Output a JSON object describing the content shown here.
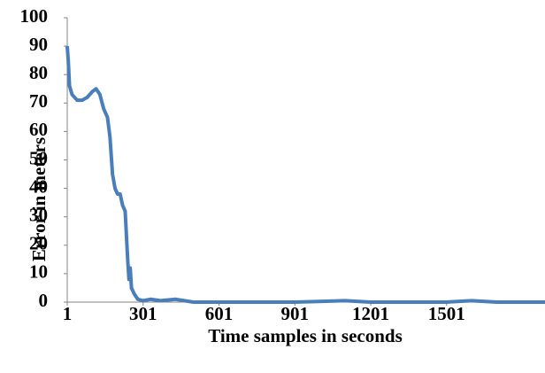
{
  "chart_data": {
    "type": "line",
    "x_label": "Time samples in seconds",
    "y_label": "Error in meters",
    "x": [
      1,
      5,
      10,
      20,
      40,
      60,
      80,
      100,
      115,
      130,
      145,
      160,
      170,
      180,
      190,
      200,
      210,
      220,
      230,
      240,
      245,
      250,
      255,
      265,
      280,
      301,
      330,
      370,
      430,
      500,
      600,
      900,
      1100,
      1200,
      1500,
      1600,
      1700,
      1890
    ],
    "series": [
      {
        "name": "Error",
        "color": "#4a7ebb",
        "values": [
          90,
          85,
          76,
          73,
          71,
          71,
          72,
          74,
          75,
          73,
          68,
          65,
          58,
          45,
          40,
          38,
          38,
          34,
          32,
          15,
          8,
          12,
          5,
          3,
          1,
          0.5,
          1,
          0.5,
          1,
          0,
          0,
          0,
          0.5,
          0,
          0,
          0.5,
          0,
          0
        ]
      }
    ],
    "xlim": [
      1,
      1890
    ],
    "xticks": [
      1,
      301,
      601,
      901,
      1201,
      1501
    ],
    "ylim": [
      0,
      100
    ],
    "yticks": [
      0,
      10,
      20,
      30,
      40,
      50,
      60,
      70,
      80,
      90,
      100
    ]
  }
}
